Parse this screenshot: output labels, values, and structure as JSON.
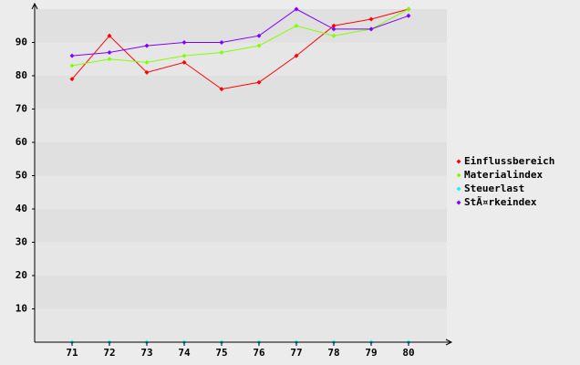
{
  "chart_data": {
    "type": "line",
    "categories": [
      "71",
      "72",
      "73",
      "74",
      "75",
      "76",
      "77",
      "78",
      "79",
      "80"
    ],
    "series": [
      {
        "name": "Einflussbereich",
        "color": "#ff0000",
        "values": [
          79,
          92,
          81,
          84,
          76,
          78,
          86,
          95,
          97,
          100
        ]
      },
      {
        "name": "Materialindex",
        "color": "#80ff00",
        "values": [
          83,
          85,
          84,
          86,
          87,
          89,
          95,
          92,
          94,
          100
        ]
      },
      {
        "name": "Steuerlast",
        "color": "#00ffff",
        "values": [
          0,
          0,
          0,
          0,
          0,
          0,
          0,
          0,
          0,
          0
        ]
      },
      {
        "name": "StÃ¤rkeindex",
        "color": "#8000ff",
        "values": [
          86,
          87,
          89,
          90,
          90,
          92,
          100,
          94,
          94,
          98
        ]
      }
    ],
    "ylim": [
      0,
      100
    ],
    "yticks": [
      10,
      20,
      30,
      40,
      50,
      60,
      70,
      80,
      90
    ],
    "legend": "right"
  }
}
